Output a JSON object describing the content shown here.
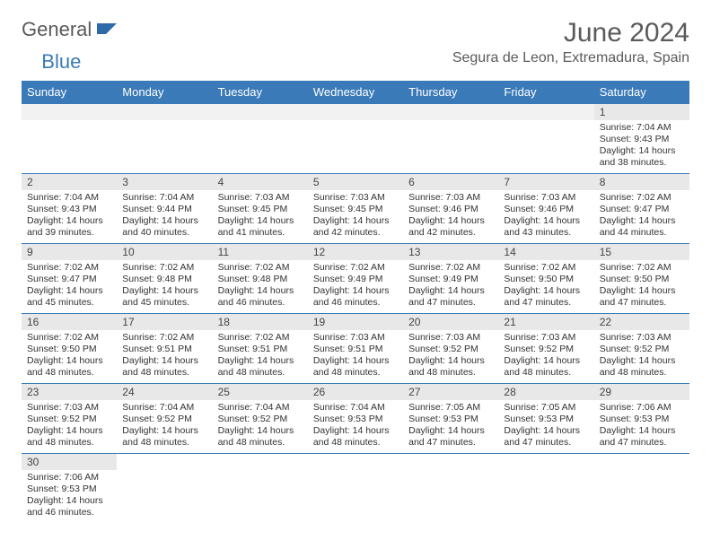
{
  "brand": {
    "general": "General",
    "blue": "Blue"
  },
  "title": "June 2024",
  "location": "Segura de Leon, Extremadura, Spain",
  "colors": {
    "header_bg": "#3a7ab8",
    "header_text": "#ffffff",
    "daynum_bg": "#e8e8e8",
    "cell_border": "#3a7ab8",
    "body_text": "#333333",
    "title_text": "#5a5a5a"
  },
  "weekdays": [
    "Sunday",
    "Monday",
    "Tuesday",
    "Wednesday",
    "Thursday",
    "Friday",
    "Saturday"
  ],
  "days": {
    "1": {
      "sunrise": "7:04 AM",
      "sunset": "9:43 PM",
      "daylight": "14 hours and 38 minutes."
    },
    "2": {
      "sunrise": "7:04 AM",
      "sunset": "9:43 PM",
      "daylight": "14 hours and 39 minutes."
    },
    "3": {
      "sunrise": "7:04 AM",
      "sunset": "9:44 PM",
      "daylight": "14 hours and 40 minutes."
    },
    "4": {
      "sunrise": "7:03 AM",
      "sunset": "9:45 PM",
      "daylight": "14 hours and 41 minutes."
    },
    "5": {
      "sunrise": "7:03 AM",
      "sunset": "9:45 PM",
      "daylight": "14 hours and 42 minutes."
    },
    "6": {
      "sunrise": "7:03 AM",
      "sunset": "9:46 PM",
      "daylight": "14 hours and 42 minutes."
    },
    "7": {
      "sunrise": "7:03 AM",
      "sunset": "9:46 PM",
      "daylight": "14 hours and 43 minutes."
    },
    "8": {
      "sunrise": "7:02 AM",
      "sunset": "9:47 PM",
      "daylight": "14 hours and 44 minutes."
    },
    "9": {
      "sunrise": "7:02 AM",
      "sunset": "9:47 PM",
      "daylight": "14 hours and 45 minutes."
    },
    "10": {
      "sunrise": "7:02 AM",
      "sunset": "9:48 PM",
      "daylight": "14 hours and 45 minutes."
    },
    "11": {
      "sunrise": "7:02 AM",
      "sunset": "9:48 PM",
      "daylight": "14 hours and 46 minutes."
    },
    "12": {
      "sunrise": "7:02 AM",
      "sunset": "9:49 PM",
      "daylight": "14 hours and 46 minutes."
    },
    "13": {
      "sunrise": "7:02 AM",
      "sunset": "9:49 PM",
      "daylight": "14 hours and 47 minutes."
    },
    "14": {
      "sunrise": "7:02 AM",
      "sunset": "9:50 PM",
      "daylight": "14 hours and 47 minutes."
    },
    "15": {
      "sunrise": "7:02 AM",
      "sunset": "9:50 PM",
      "daylight": "14 hours and 47 minutes."
    },
    "16": {
      "sunrise": "7:02 AM",
      "sunset": "9:50 PM",
      "daylight": "14 hours and 48 minutes."
    },
    "17": {
      "sunrise": "7:02 AM",
      "sunset": "9:51 PM",
      "daylight": "14 hours and 48 minutes."
    },
    "18": {
      "sunrise": "7:02 AM",
      "sunset": "9:51 PM",
      "daylight": "14 hours and 48 minutes."
    },
    "19": {
      "sunrise": "7:03 AM",
      "sunset": "9:51 PM",
      "daylight": "14 hours and 48 minutes."
    },
    "20": {
      "sunrise": "7:03 AM",
      "sunset": "9:52 PM",
      "daylight": "14 hours and 48 minutes."
    },
    "21": {
      "sunrise": "7:03 AM",
      "sunset": "9:52 PM",
      "daylight": "14 hours and 48 minutes."
    },
    "22": {
      "sunrise": "7:03 AM",
      "sunset": "9:52 PM",
      "daylight": "14 hours and 48 minutes."
    },
    "23": {
      "sunrise": "7:03 AM",
      "sunset": "9:52 PM",
      "daylight": "14 hours and 48 minutes."
    },
    "24": {
      "sunrise": "7:04 AM",
      "sunset": "9:52 PM",
      "daylight": "14 hours and 48 minutes."
    },
    "25": {
      "sunrise": "7:04 AM",
      "sunset": "9:52 PM",
      "daylight": "14 hours and 48 minutes."
    },
    "26": {
      "sunrise": "7:04 AM",
      "sunset": "9:53 PM",
      "daylight": "14 hours and 48 minutes."
    },
    "27": {
      "sunrise": "7:05 AM",
      "sunset": "9:53 PM",
      "daylight": "14 hours and 47 minutes."
    },
    "28": {
      "sunrise": "7:05 AM",
      "sunset": "9:53 PM",
      "daylight": "14 hours and 47 minutes."
    },
    "29": {
      "sunrise": "7:06 AM",
      "sunset": "9:53 PM",
      "daylight": "14 hours and 47 minutes."
    },
    "30": {
      "sunrise": "7:06 AM",
      "sunset": "9:53 PM",
      "daylight": "14 hours and 46 minutes."
    }
  },
  "labels": {
    "sunrise": "Sunrise: ",
    "sunset": "Sunset: ",
    "daylight": "Daylight: "
  },
  "grid": [
    [
      null,
      null,
      null,
      null,
      null,
      null,
      "1"
    ],
    [
      "2",
      "3",
      "4",
      "5",
      "6",
      "7",
      "8"
    ],
    [
      "9",
      "10",
      "11",
      "12",
      "13",
      "14",
      "15"
    ],
    [
      "16",
      "17",
      "18",
      "19",
      "20",
      "21",
      "22"
    ],
    [
      "23",
      "24",
      "25",
      "26",
      "27",
      "28",
      "29"
    ],
    [
      "30",
      null,
      null,
      null,
      null,
      null,
      null
    ]
  ]
}
